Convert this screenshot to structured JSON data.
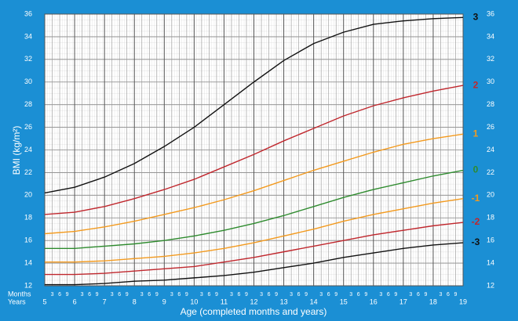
{
  "chart_data": {
    "type": "line",
    "y_label": "BMI (kg/m²)",
    "x_label": "Age (completed months and years)",
    "months_label": "Months",
    "years_label": "Years",
    "x": [
      5,
      6,
      7,
      8,
      9,
      10,
      11,
      12,
      13,
      14,
      15,
      16,
      17,
      18,
      19
    ],
    "xlim": [
      5,
      19
    ],
    "xticks": [
      5,
      6,
      7,
      8,
      9,
      10,
      11,
      12,
      13,
      14,
      15,
      16,
      17,
      18,
      19
    ],
    "month_ticks": [
      {
        "value": 5.25,
        "label": "3"
      },
      {
        "value": 5.5,
        "label": "6"
      },
      {
        "value": 5.75,
        "label": "9"
      },
      {
        "value": 6.25,
        "label": "3"
      },
      {
        "value": 6.5,
        "label": "6"
      },
      {
        "value": 6.75,
        "label": "9"
      },
      {
        "value": 7.25,
        "label": "3"
      },
      {
        "value": 7.5,
        "label": "6"
      },
      {
        "value": 7.75,
        "label": "9"
      },
      {
        "value": 8.25,
        "label": "3"
      },
      {
        "value": 8.5,
        "label": "6"
      },
      {
        "value": 8.75,
        "label": "9"
      },
      {
        "value": 9.25,
        "label": "3"
      },
      {
        "value": 9.5,
        "label": "6"
      },
      {
        "value": 9.75,
        "label": "9"
      },
      {
        "value": 10.25,
        "label": "3"
      },
      {
        "value": 10.5,
        "label": "6"
      },
      {
        "value": 10.75,
        "label": "9"
      },
      {
        "value": 11.25,
        "label": "3"
      },
      {
        "value": 11.5,
        "label": "6"
      },
      {
        "value": 11.75,
        "label": "9"
      },
      {
        "value": 12.25,
        "label": "3"
      },
      {
        "value": 12.5,
        "label": "6"
      },
      {
        "value": 12.75,
        "label": "9"
      },
      {
        "value": 13.25,
        "label": "3"
      },
      {
        "value": 13.5,
        "label": "6"
      },
      {
        "value": 13.75,
        "label": "9"
      },
      {
        "value": 14.25,
        "label": "3"
      },
      {
        "value": 14.5,
        "label": "6"
      },
      {
        "value": 14.75,
        "label": "9"
      },
      {
        "value": 15.25,
        "label": "3"
      },
      {
        "value": 15.5,
        "label": "6"
      },
      {
        "value": 15.75,
        "label": "9"
      },
      {
        "value": 16.25,
        "label": "3"
      },
      {
        "value": 16.5,
        "label": "6"
      },
      {
        "value": 16.75,
        "label": "9"
      },
      {
        "value": 17.25,
        "label": "3"
      },
      {
        "value": 17.5,
        "label": "6"
      },
      {
        "value": 17.75,
        "label": "9"
      },
      {
        "value": 18.25,
        "label": "3"
      },
      {
        "value": 18.5,
        "label": "6"
      },
      {
        "value": 18.75,
        "label": "9"
      }
    ],
    "ylim": [
      12,
      36
    ],
    "yticks": [
      12,
      14,
      16,
      18,
      20,
      22,
      24,
      26,
      28,
      30,
      32,
      34,
      36
    ],
    "grid": true,
    "series": [
      {
        "name": "3",
        "color": "#111111",
        "values": [
          20.2,
          20.7,
          21.6,
          22.8,
          24.3,
          26.0,
          28.0,
          30.0,
          31.9,
          33.4,
          34.4,
          35.1,
          35.4,
          35.6,
          35.7
        ]
      },
      {
        "name": "2",
        "color": "#c0272d",
        "values": [
          18.3,
          18.5,
          19.0,
          19.7,
          20.5,
          21.4,
          22.5,
          23.6,
          24.8,
          25.9,
          27.0,
          27.9,
          28.6,
          29.2,
          29.7
        ]
      },
      {
        "name": "1",
        "color": "#f39a1e",
        "values": [
          16.6,
          16.8,
          17.2,
          17.7,
          18.3,
          18.9,
          19.6,
          20.4,
          21.3,
          22.2,
          23.0,
          23.8,
          24.5,
          25.0,
          25.4
        ]
      },
      {
        "name": "0",
        "color": "#2e8b2e",
        "values": [
          15.3,
          15.3,
          15.5,
          15.7,
          16.0,
          16.4,
          16.9,
          17.5,
          18.2,
          19.0,
          19.8,
          20.5,
          21.1,
          21.7,
          22.2
        ]
      },
      {
        "name": "-1",
        "color": "#f39a1e",
        "values": [
          14.1,
          14.1,
          14.2,
          14.4,
          14.6,
          14.9,
          15.3,
          15.8,
          16.4,
          17.0,
          17.7,
          18.3,
          18.8,
          19.3,
          19.7
        ]
      },
      {
        "name": "-2",
        "color": "#c0272d",
        "values": [
          13.0,
          13.0,
          13.1,
          13.3,
          13.5,
          13.7,
          14.1,
          14.5,
          15.0,
          15.5,
          16.0,
          16.5,
          16.9,
          17.3,
          17.6
        ]
      },
      {
        "name": "-3",
        "color": "#111111",
        "values": [
          12.1,
          12.1,
          12.2,
          12.4,
          12.5,
          12.7,
          12.9,
          13.2,
          13.6,
          14.0,
          14.5,
          14.9,
          15.3,
          15.6,
          15.8
        ]
      }
    ]
  }
}
